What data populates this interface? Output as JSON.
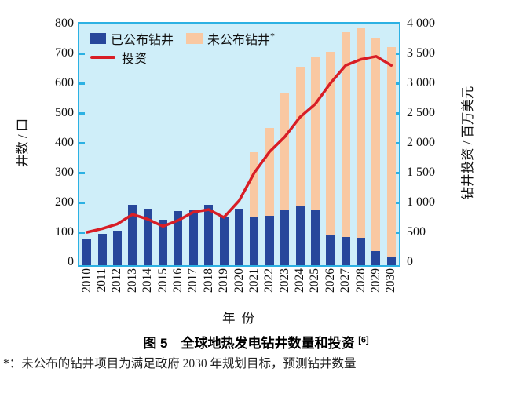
{
  "figure": {
    "caption": "图 5　全球地热发电钻井数量和投资",
    "caption_ref": "[6]",
    "footnote_marker": "*：",
    "footnote_text": "未公布的钻井项目为满足政府 2030 年规划目标，预测钻井数量"
  },
  "chart_data": {
    "type": "bar",
    "subtype": "stacked-bar-with-line",
    "title": "全球地热发电钻井数量和投资",
    "categories": [
      "2010",
      "2011",
      "2012",
      "2013",
      "2014",
      "2015",
      "2016",
      "2017",
      "2018",
      "2019",
      "2020",
      "2021",
      "2022",
      "2023",
      "2024",
      "2025",
      "2026",
      "2027",
      "2028",
      "2029",
      "2030"
    ],
    "series": [
      {
        "name": "已公布钻井",
        "type": "bar",
        "axis": "left",
        "color": "#27479b",
        "values": [
          90,
          105,
          115,
          203,
          190,
          152,
          182,
          188,
          203,
          160,
          190,
          160,
          165,
          188,
          200,
          188,
          101,
          96,
          91,
          47,
          26
        ]
      },
      {
        "name": "未公布钻井",
        "marker": "*",
        "type": "bar",
        "axis": "left",
        "color": "#f9c8a2",
        "values": [
          0,
          0,
          0,
          0,
          0,
          0,
          0,
          0,
          0,
          0,
          0,
          220,
          295,
          390,
          465,
          510,
          615,
          685,
          705,
          715,
          705
        ]
      },
      {
        "name": "投资",
        "type": "line",
        "axis": "right",
        "color": "#d81e26",
        "values": [
          500,
          560,
          640,
          800,
          720,
          600,
          700,
          840,
          880,
          750,
          1030,
          1500,
          1850,
          2100,
          2430,
          2650,
          3000,
          3300,
          3400,
          3450,
          3300
        ]
      }
    ],
    "left_axis": {
      "label": "井数 / 口",
      "min": 0,
      "max": 800,
      "tick_values": [
        0,
        100,
        200,
        300,
        400,
        500,
        600,
        700,
        800
      ],
      "tick_labels": [
        "0",
        "100",
        "200",
        "300",
        "400",
        "500",
        "600",
        "700",
        "800"
      ]
    },
    "right_axis": {
      "label": "钻井投资 / 百万美元",
      "min": 0,
      "max": 4000,
      "tick_values": [
        0,
        500,
        1000,
        1500,
        2000,
        2500,
        3000,
        3500,
        4000
      ],
      "tick_labels": [
        "0",
        "500",
        "1 000",
        "1 500",
        "2 000",
        "2 500",
        "3 000",
        "3 500",
        "4 000"
      ]
    },
    "x_axis": {
      "label": "年 份"
    },
    "legend_position": "top-left-inside",
    "grid": false,
    "colors": {
      "plot_background": "#cfeef9",
      "axis_frame": "#2cb1e3"
    }
  }
}
